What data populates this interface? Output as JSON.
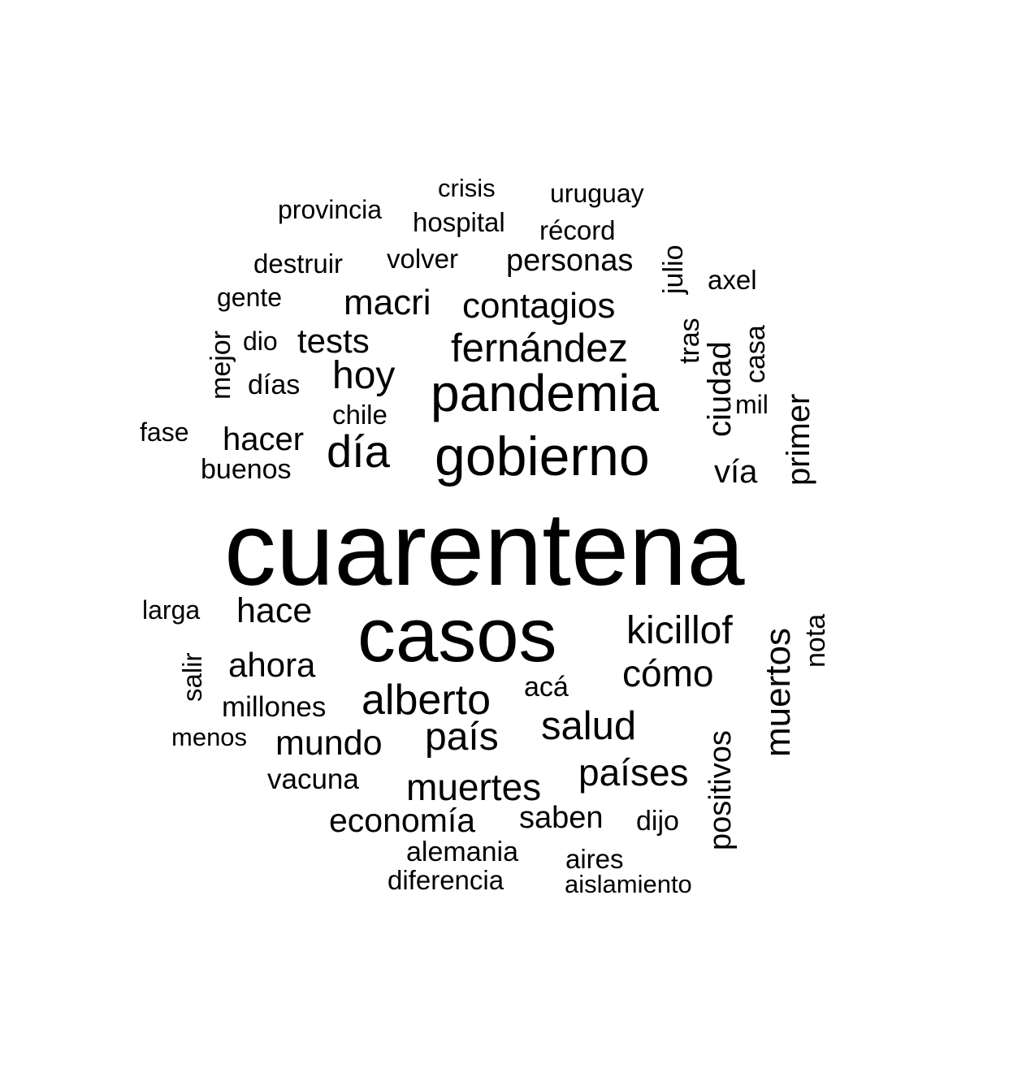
{
  "words": [
    "crisis",
    "uruguay",
    "provincia",
    "hospital",
    "récord",
    "destruir",
    "volver",
    "personas",
    "julio",
    "axel",
    "gente",
    "macri",
    "contagios",
    "dio",
    "tests",
    "mejor",
    "tras",
    "casa",
    "fernández",
    "días",
    "hoy",
    "ciudad",
    "pandemia",
    "mil",
    "chile",
    "primer",
    "fase",
    "hacer",
    "día",
    "gobierno",
    "buenos",
    "vía",
    "cuarentena",
    "larga",
    "hace",
    "casos",
    "kicillof",
    "nota",
    "muertos",
    "ahora",
    "salir",
    "cómo",
    "acá",
    "millones",
    "alberto",
    "menos",
    "mundo",
    "país",
    "salud",
    "positivos",
    "vacuna",
    "países",
    "muertes",
    "economía",
    "saben",
    "dijo",
    "alemania",
    "aires",
    "diferencia",
    "aislamiento"
  ]
}
